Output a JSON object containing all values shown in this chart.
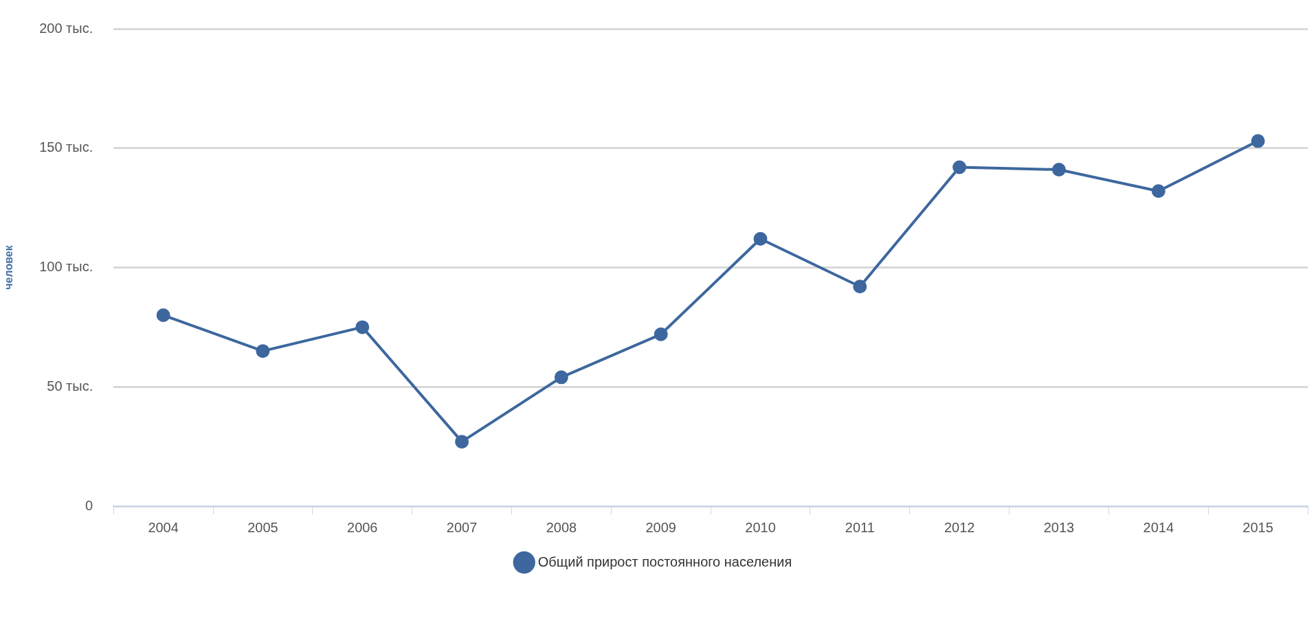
{
  "chart_data": {
    "type": "line",
    "ylabel": "человек",
    "categories": [
      "2004",
      "2005",
      "2006",
      "2007",
      "2008",
      "2009",
      "2010",
      "2011",
      "2012",
      "2013",
      "2014",
      "2015"
    ],
    "series": [
      {
        "name": "Общий прирост постоянного населения",
        "color": "#3d679e",
        "values": [
          80,
          65,
          75,
          27,
          54,
          72,
          112,
          92,
          142,
          141,
          132,
          153
        ]
      }
    ],
    "ylim": [
      0,
      200
    ],
    "yticks": [
      {
        "value": 0,
        "label": "0"
      },
      {
        "value": 50,
        "label": "50 тыс."
      },
      {
        "value": 100,
        "label": "100 тыс."
      },
      {
        "value": 150,
        "label": "150 тыс."
      },
      {
        "value": 200,
        "label": "200 тыс."
      }
    ],
    "grid": "y",
    "legend": "bottom",
    "marker": "circle",
    "line_style": "solid"
  }
}
